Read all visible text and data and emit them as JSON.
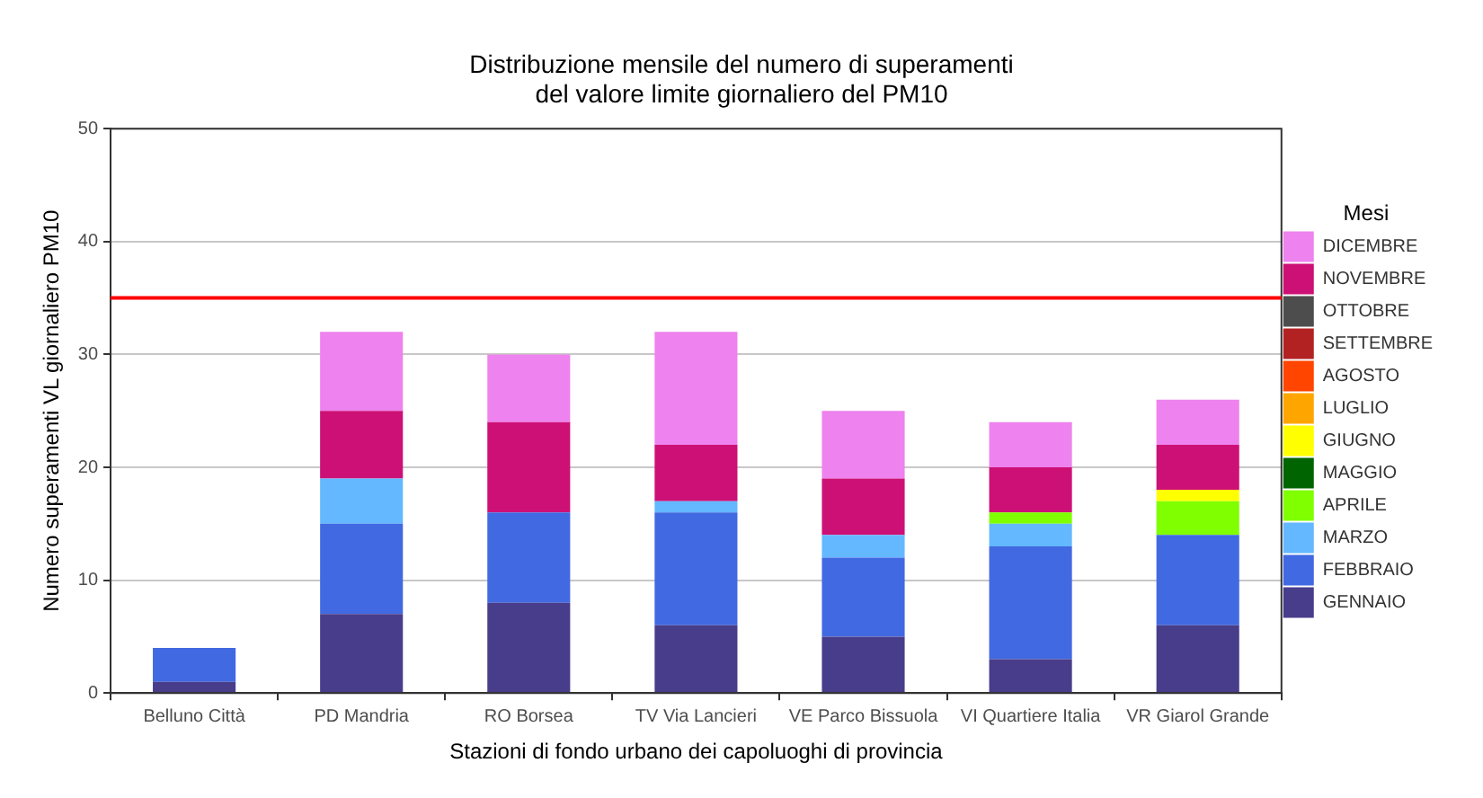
{
  "chart_data": {
    "type": "bar",
    "title": "Distribuzione mensile del numero di superamenti\ndel valore limite giornaliero del PM10",
    "xlabel": "Stazioni di fondo urbano dei capoluoghi di provincia",
    "ylabel": "Numero superamenti VL giornaliero PM10",
    "legend_title": "Mesi",
    "categories": [
      "Belluno Città",
      "PD Mandria",
      "RO Borsea",
      "TV Via Lancieri",
      "VE Parco Bissuola",
      "VI Quartiere Italia",
      "VR Giarol Grande"
    ],
    "stacked": true,
    "ylim": [
      0,
      50
    ],
    "yticks": [
      0,
      10,
      20,
      30,
      40,
      50
    ],
    "grid": "y",
    "legend": "right",
    "ref_lines": [
      {
        "axis": "y",
        "value": 35,
        "label": null,
        "color": "#ff0000"
      }
    ],
    "series": [
      {
        "name": "GENNAIO",
        "color": "#483d8b",
        "values": [
          1,
          7,
          8,
          6,
          5,
          3,
          6
        ]
      },
      {
        "name": "FEBBRAIO",
        "color": "#4169e1",
        "values": [
          3,
          8,
          8,
          10,
          7,
          10,
          8
        ]
      },
      {
        "name": "MARZO",
        "color": "#63b8ff",
        "values": [
          0,
          4,
          0,
          1,
          2,
          2,
          0
        ]
      },
      {
        "name": "APRILE",
        "color": "#7fff00",
        "values": [
          0,
          0,
          0,
          0,
          0,
          1,
          3
        ]
      },
      {
        "name": "MAGGIO",
        "color": "#006400",
        "values": [
          0,
          0,
          0,
          0,
          0,
          0,
          0
        ]
      },
      {
        "name": "GIUGNO",
        "color": "#ffff00",
        "values": [
          0,
          0,
          0,
          0,
          0,
          0,
          1
        ]
      },
      {
        "name": "LUGLIO",
        "color": "#ffa500",
        "values": [
          0,
          0,
          0,
          0,
          0,
          0,
          0
        ]
      },
      {
        "name": "AGOSTO",
        "color": "#ff4500",
        "values": [
          0,
          0,
          0,
          0,
          0,
          0,
          0
        ]
      },
      {
        "name": "SETTEMBRE",
        "color": "#b22222",
        "values": [
          0,
          0,
          0,
          0,
          0,
          0,
          0
        ]
      },
      {
        "name": "OTTOBRE",
        "color": "#4d4d4d",
        "values": [
          0,
          0,
          0,
          0,
          0,
          0,
          0
        ]
      },
      {
        "name": "NOVEMBRE",
        "color": "#cd1076",
        "values": [
          0,
          6,
          8,
          5,
          5,
          4,
          4
        ]
      },
      {
        "name": "DICEMBRE",
        "color": "#ee82ee",
        "values": [
          0,
          7,
          6,
          10,
          6,
          4,
          4
        ]
      }
    ]
  }
}
